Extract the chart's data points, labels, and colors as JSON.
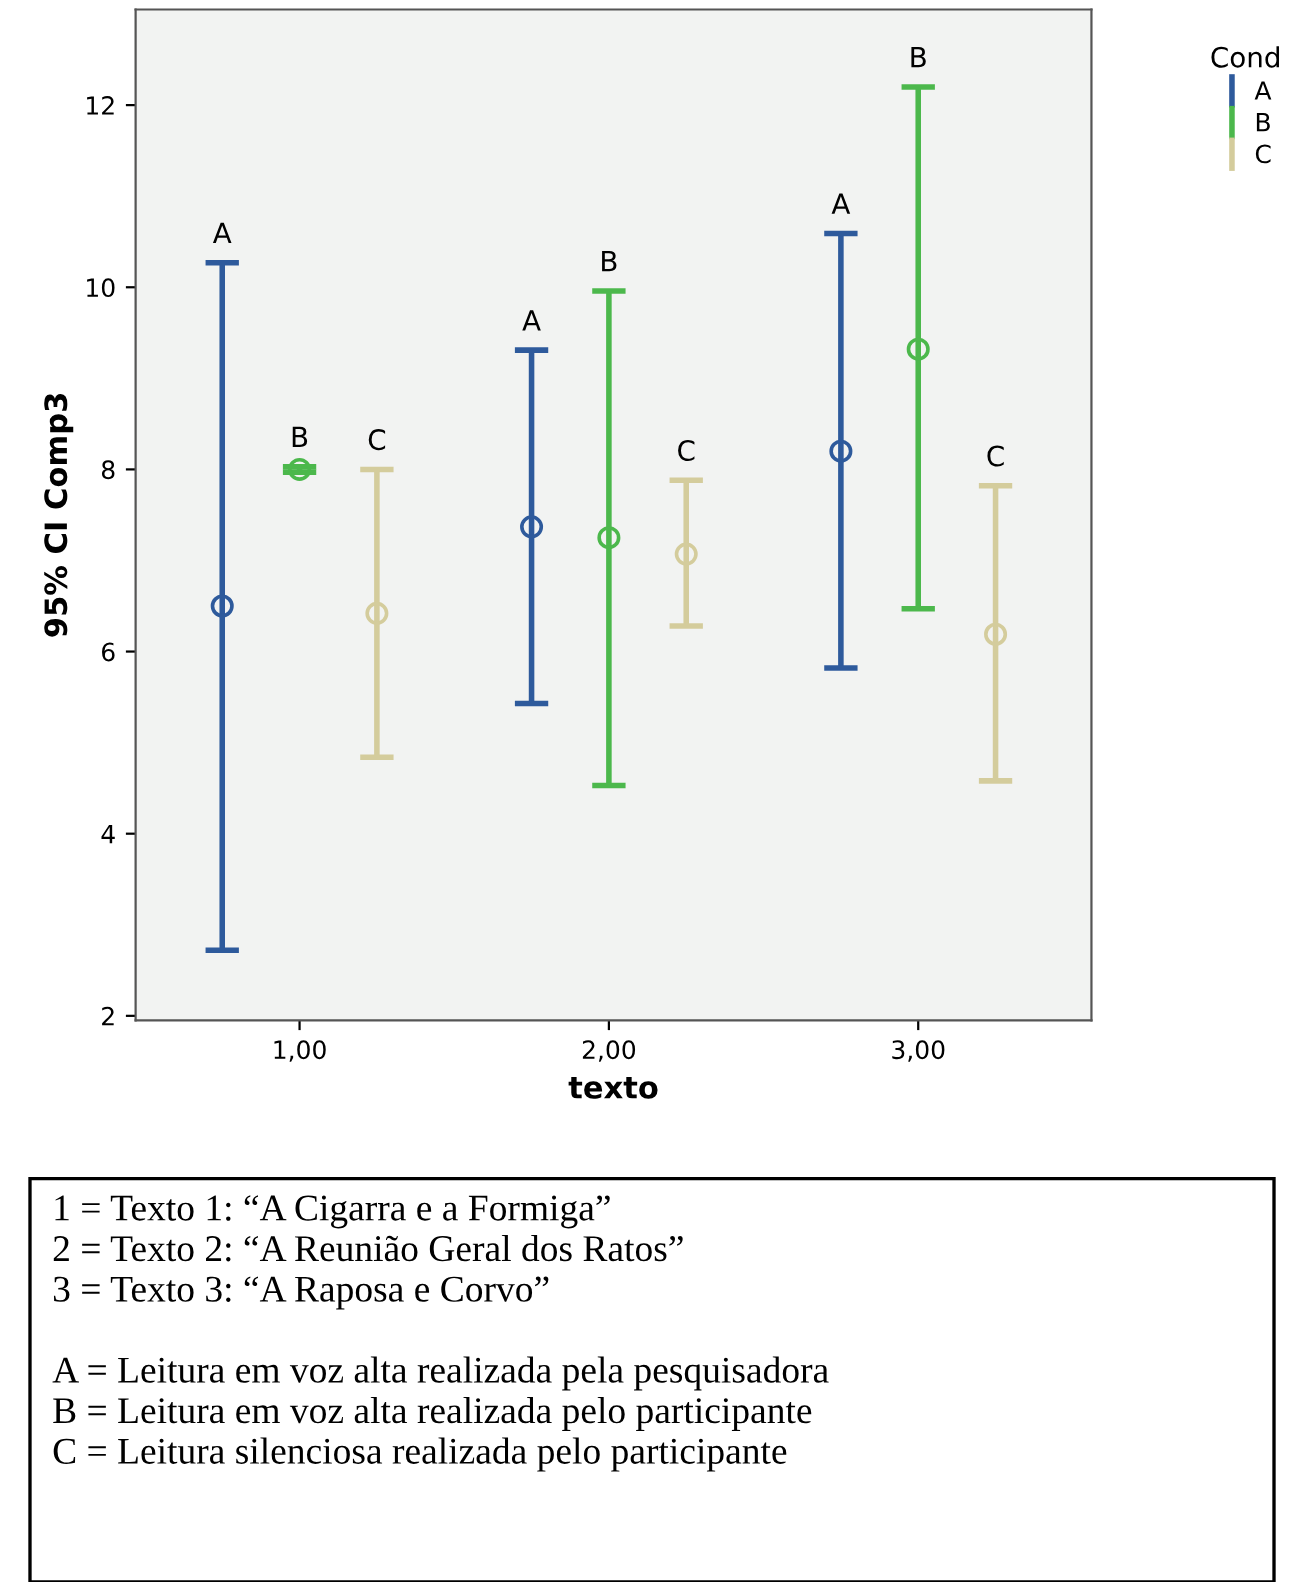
{
  "chart_data": {
    "type": "scatter",
    "xlabel": "texto",
    "ylabel": "95% CI Comp3",
    "legend_title": "Cond",
    "legend": "top right",
    "marker": "circle",
    "grid": false,
    "xlim": [
      0.47,
      3.56
    ],
    "xticks": [
      {
        "value": 1,
        "label": "1,00"
      },
      {
        "value": 2,
        "label": "2,00"
      },
      {
        "value": 3,
        "label": "3,00"
      }
    ],
    "ylim": [
      1.95,
      13.05
    ],
    "yticks": [
      2,
      4,
      6,
      8,
      10,
      12
    ],
    "series": [
      {
        "name": "A",
        "color": "#2e5a9c",
        "x": [
          0.75,
          1.75,
          2.75
        ],
        "values": [
          6.5,
          7.37,
          8.2
        ],
        "errors": [
          [
            2.72,
            10.27
          ],
          [
            5.43,
            9.31
          ],
          [
            5.82,
            10.59
          ]
        ]
      },
      {
        "name": "B",
        "color": "#4cb84c",
        "x": [
          1,
          2,
          3
        ],
        "values": [
          8.0,
          7.25,
          9.32
        ],
        "errors": [
          [
            7.97,
            8.03
          ],
          [
            4.53,
            9.96
          ],
          [
            6.47,
            12.2
          ]
        ]
      },
      {
        "name": "C",
        "color": "#d4cc9c",
        "x": [
          1.25,
          2.25,
          3.25
        ],
        "values": [
          6.42,
          7.07,
          6.19
        ],
        "errors": [
          [
            4.84,
            8.0
          ],
          [
            6.28,
            7.88
          ],
          [
            4.58,
            7.82
          ]
        ]
      }
    ],
    "annotations": [
      {
        "text": "A",
        "x": 0.75,
        "y": 10.27
      },
      {
        "text": "B",
        "x": 1,
        "y": 8.03
      },
      {
        "text": "C",
        "x": 1.25,
        "y": 8.0
      },
      {
        "text": "A",
        "x": 1.75,
        "y": 9.31
      },
      {
        "text": "B",
        "x": 2,
        "y": 9.96
      },
      {
        "text": "C",
        "x": 2.25,
        "y": 7.88
      },
      {
        "text": "A",
        "x": 2.75,
        "y": 10.59
      },
      {
        "text": "B",
        "x": 3,
        "y": 12.2
      },
      {
        "text": "C",
        "x": 3.25,
        "y": 7.82
      },
      "1 = Texto 1: “A Cigarra e a Formiga”\n2 = Texto 2: “A Reunião Geral dos Ratos”\n3 = Texto 3: “A Raposa e Corvo”\n\nA = Leitura em voz alta realizada pela pesquisadora\nB = Leitura em voz alta realizada pelo participante\nC = Leitura silenciosa realizada pelo participante"
    ]
  }
}
